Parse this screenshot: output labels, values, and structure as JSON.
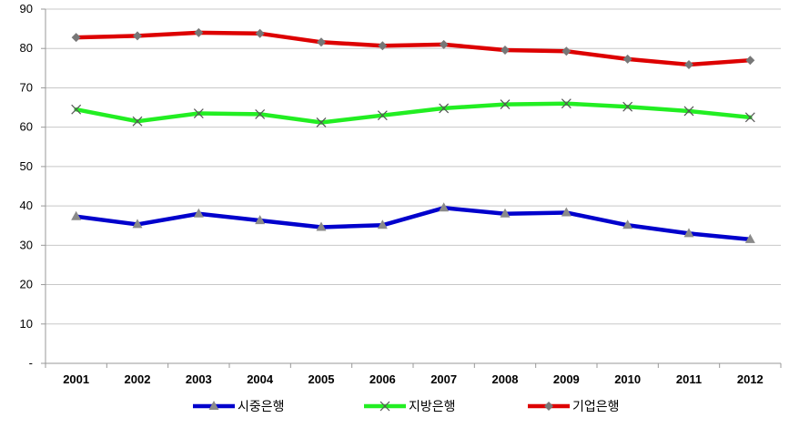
{
  "chart_data": {
    "type": "line",
    "title": "",
    "xlabel": "",
    "ylabel": "",
    "categories": [
      "2001",
      "2002",
      "2003",
      "2004",
      "2005",
      "2006",
      "2007",
      "2008",
      "2009",
      "2010",
      "2011",
      "2012"
    ],
    "ylim": [
      0,
      90
    ],
    "y_ticks": [
      "-",
      "10",
      "20",
      "30",
      "40",
      "50",
      "60",
      "70",
      "80",
      "90"
    ],
    "grid": "horizontal",
    "legend_position": "bottom",
    "series": [
      {
        "name": "시중은행",
        "color": "#0000cc",
        "marker": "triangle",
        "values": [
          37.3,
          35.3,
          38.0,
          36.3,
          34.6,
          35.1,
          39.5,
          38.0,
          38.3,
          35.1,
          33.0,
          31.5
        ]
      },
      {
        "name": "지방은행",
        "color": "#22ee22",
        "marker": "x",
        "values": [
          64.5,
          61.5,
          63.5,
          63.3,
          61.2,
          63.0,
          64.8,
          65.8,
          66.0,
          65.2,
          64.1,
          62.5
        ]
      },
      {
        "name": "기업은행",
        "color": "#dd0000",
        "marker": "diamond",
        "values": [
          82.8,
          83.2,
          84.0,
          83.8,
          81.6,
          80.7,
          81.0,
          79.6,
          79.3,
          77.3,
          75.9,
          77.0
        ]
      }
    ]
  }
}
